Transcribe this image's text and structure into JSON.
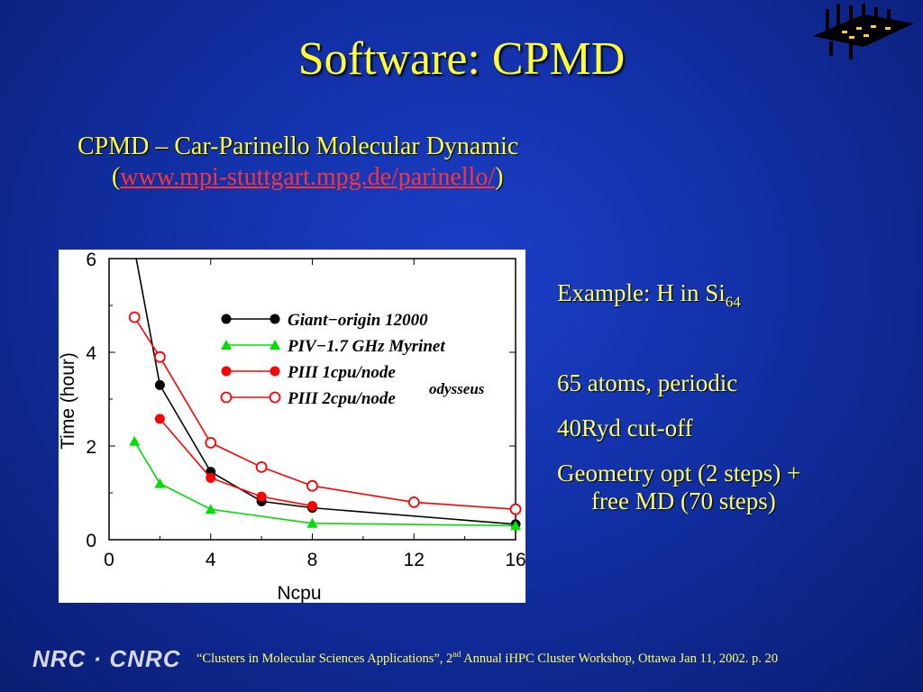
{
  "slide": {
    "title": "Software: CPMD",
    "subtitle_line1": "CPMD – Car-Parinello Molecular Dynamic",
    "subtitle_paren_open": "(",
    "subtitle_link": "www.mpi-stuttgart.mpg.de/parinello/",
    "subtitle_paren_close": ")",
    "bullets": {
      "example_prefix": "Example:  H in Si",
      "example_sub": "64",
      "atoms": "65 atoms, periodic",
      "cutoff": "40Ryd cut-off",
      "geometry_line1": "Geometry opt (2 steps) +",
      "geometry_line2": "free MD (70 steps)"
    },
    "footer": {
      "logo": "NRC · CNRC",
      "text_before_sup": "“Clusters in Molecular Sciences Applications”, 2",
      "sup": "nd",
      "text_after_sup": " Annual iHPC Cluster Workshop, Ottawa Jan 11, 2002.   p. 20"
    }
  },
  "chart_data": {
    "type": "line",
    "xlabel": "Ncpu",
    "ylabel": "Time (hour)",
    "xlim": [
      0,
      16
    ],
    "ylim": [
      0,
      6
    ],
    "xticks": [
      0,
      4,
      8,
      12,
      16
    ],
    "yticks": [
      0,
      2,
      4,
      6
    ],
    "legend_position": "top-right",
    "annotation": "odysseus",
    "series": [
      {
        "name": "Giant−origin 12000",
        "color": "#000000",
        "marker": "circle-filled",
        "x": [
          1,
          2,
          4,
          6,
          8,
          16
        ],
        "y": [
          6.2,
          3.3,
          1.45,
          0.82,
          0.68,
          0.33
        ]
      },
      {
        "name": "PIV−1.7 GHz Myrinet",
        "color": "#00dd00",
        "marker": "triangle-filled",
        "x": [
          1,
          2,
          4,
          8,
          16
        ],
        "y": [
          2.1,
          1.2,
          0.65,
          0.35,
          0.3
        ]
      },
      {
        "name": "PIII 1cpu/node",
        "color": "#ff0000",
        "marker": "circle-filled",
        "x": [
          2,
          4,
          6,
          8
        ],
        "y": [
          2.58,
          1.32,
          0.92,
          0.72
        ]
      },
      {
        "name": "PIII 2cpu/node",
        "color": "#ff0000",
        "marker": "circle-open",
        "x": [
          1,
          2,
          4,
          6,
          8,
          12,
          16
        ],
        "y": [
          4.75,
          3.9,
          2.07,
          1.55,
          1.15,
          0.8,
          0.65
        ]
      }
    ]
  }
}
